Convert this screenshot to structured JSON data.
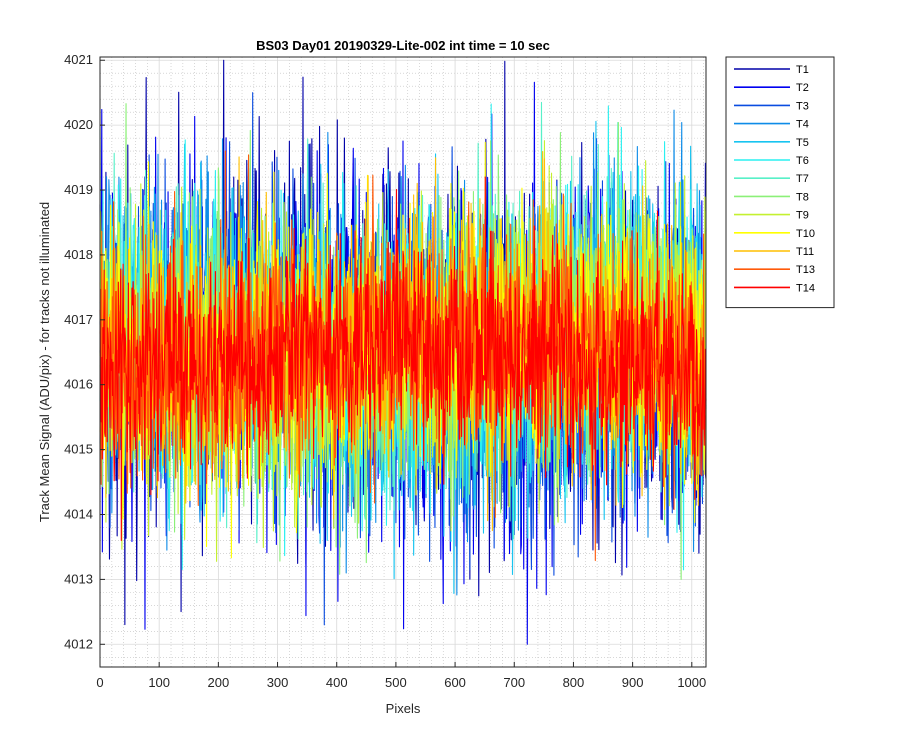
{
  "chart_data": {
    "type": "line",
    "title": "BS03 Day01 20190329-Lite-002 int time = 10 sec",
    "xlabel": "Pixels",
    "ylabel": "Track Mean Signal (ADU/pix) - for tracks not illuminated",
    "xlim": [
      0,
      1024
    ],
    "ylim": [
      4011.65,
      4021.05
    ],
    "xticks": [
      0,
      100,
      200,
      300,
      400,
      500,
      600,
      700,
      800,
      900,
      1000
    ],
    "yticks": [
      4012,
      4013,
      4014,
      4015,
      4016,
      4017,
      4018,
      4019,
      4020,
      4021
    ],
    "x_minor_step": 20,
    "y_minor_step": 0.2,
    "grid": true,
    "minor_grid": true,
    "legend_position": "outside-top-right",
    "noise_seed": 20190329,
    "series": [
      {
        "name": "T1",
        "color": "#0000a8",
        "mean": 4016.55,
        "std": 1.4,
        "min": 4011.9,
        "max": 4021.0
      },
      {
        "name": "T2",
        "color": "#0000f0",
        "mean": 4016.55,
        "std": 1.3,
        "min": 4012.0,
        "max": 4020.8
      },
      {
        "name": "T3",
        "color": "#0a4ce0",
        "mean": 4016.55,
        "std": 1.25,
        "min": 4012.3,
        "max": 4020.5
      },
      {
        "name": "T4",
        "color": "#0e8ce8",
        "mean": 4016.55,
        "std": 1.2,
        "min": 4012.4,
        "max": 4020.4
      },
      {
        "name": "T5",
        "color": "#18c4f0",
        "mean": 4016.55,
        "std": 1.15,
        "min": 4012.6,
        "max": 4020.2
      },
      {
        "name": "T6",
        "color": "#2af0f0",
        "mean": 4016.55,
        "std": 1.1,
        "min": 4012.8,
        "max": 4021.0
      },
      {
        "name": "T7",
        "color": "#58f0c8",
        "mean": 4016.55,
        "std": 1.1,
        "min": 4012.9,
        "max": 4020.7
      },
      {
        "name": "T8",
        "color": "#8cf078",
        "mean": 4016.55,
        "std": 1.05,
        "min": 4013.0,
        "max": 4020.5
      },
      {
        "name": "T9",
        "color": "#c4f030",
        "mean": 4016.55,
        "std": 1.05,
        "min": 4013.1,
        "max": 4020.3
      },
      {
        "name": "T10",
        "color": "#ffff00",
        "mean": 4016.55,
        "std": 1.0,
        "min": 4011.7,
        "max": 4020.6
      },
      {
        "name": "T11",
        "color": "#ffbf00",
        "mean": 4016.55,
        "std": 0.95,
        "min": 4013.2,
        "max": 4019.8
      },
      {
        "name": "T13",
        "color": "#ff5a0a",
        "mean": 4016.45,
        "std": 0.9,
        "min": 4012.8,
        "max": 4019.6
      },
      {
        "name": "T14",
        "color": "#ff0000",
        "mean": 4016.4,
        "std": 0.85,
        "min": 4013.6,
        "max": 4019.2
      }
    ]
  }
}
